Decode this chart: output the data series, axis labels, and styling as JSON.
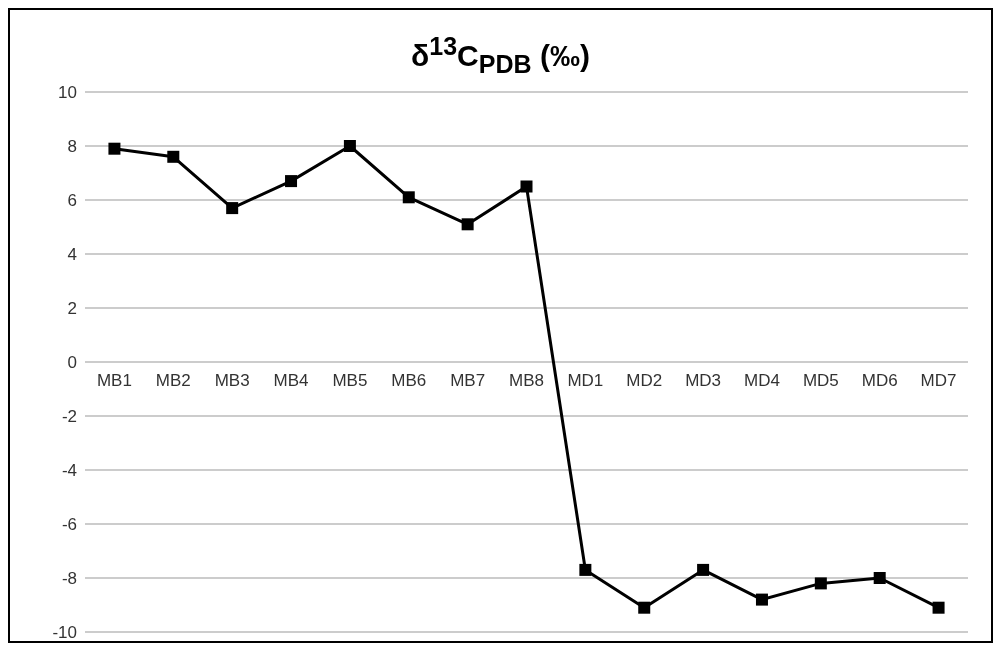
{
  "chart_data": {
    "type": "line",
    "title": "δ$^{13}$C$_{PDB}$ (‰)",
    "categories": [
      "MB1",
      "MB2",
      "MB3",
      "MB4",
      "MB5",
      "MB6",
      "MB7",
      "MB8",
      "MD1",
      "MD2",
      "MD3",
      "MD4",
      "MD5",
      "MD6",
      "MD7"
    ],
    "series": [
      {
        "color": "#000000",
        "values": [
          7.9,
          7.6,
          5.7,
          6.7,
          8.0,
          6.1,
          5.1,
          6.5,
          -7.7,
          -9.1,
          -7.7,
          -8.8,
          -8.2,
          -8.0,
          -9.1
        ]
      }
    ],
    "ylim": [
      -10,
      10
    ],
    "yticks": [
      -10,
      -8,
      -6,
      -4,
      -2,
      0,
      2,
      4,
      6,
      8,
      10
    ],
    "grid": "y",
    "legend": false,
    "marker": "square",
    "line_style": "solid"
  }
}
